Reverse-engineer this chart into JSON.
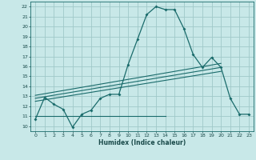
{
  "xlabel": "Humidex (Indice chaleur)",
  "ylabel": "",
  "bg_color": "#c8e8e8",
  "grid_color": "#a0c8c8",
  "line_color": "#1a6b6b",
  "xlim": [
    -0.5,
    23.5
  ],
  "ylim": [
    9.5,
    22.5
  ],
  "xticks": [
    0,
    1,
    2,
    3,
    4,
    5,
    6,
    7,
    8,
    9,
    10,
    11,
    12,
    13,
    14,
    15,
    16,
    17,
    18,
    19,
    20,
    21,
    22,
    23
  ],
  "yticks": [
    10,
    11,
    12,
    13,
    14,
    15,
    16,
    17,
    18,
    19,
    20,
    21,
    22
  ],
  "line1_x": [
    0,
    1,
    2,
    3,
    4,
    5,
    6,
    7,
    8,
    9,
    10,
    11,
    12,
    13,
    14,
    15,
    16,
    17,
    18,
    19,
    20,
    21,
    22,
    23
  ],
  "line1_y": [
    10.7,
    12.9,
    12.2,
    11.7,
    9.9,
    11.2,
    11.6,
    12.8,
    13.2,
    13.2,
    16.2,
    18.7,
    21.2,
    22.0,
    21.7,
    21.7,
    19.8,
    17.2,
    15.9,
    16.9,
    15.9,
    12.8,
    11.2,
    11.2
  ],
  "line2_x": [
    0,
    14
  ],
  "line2_y": [
    11.0,
    11.0
  ],
  "line3_x": [
    0,
    20
  ],
  "line3_y": [
    12.5,
    15.5
  ],
  "line4_x": [
    0,
    20
  ],
  "line4_y": [
    12.8,
    15.9
  ],
  "line5_x": [
    0,
    20
  ],
  "line5_y": [
    13.1,
    16.3
  ]
}
